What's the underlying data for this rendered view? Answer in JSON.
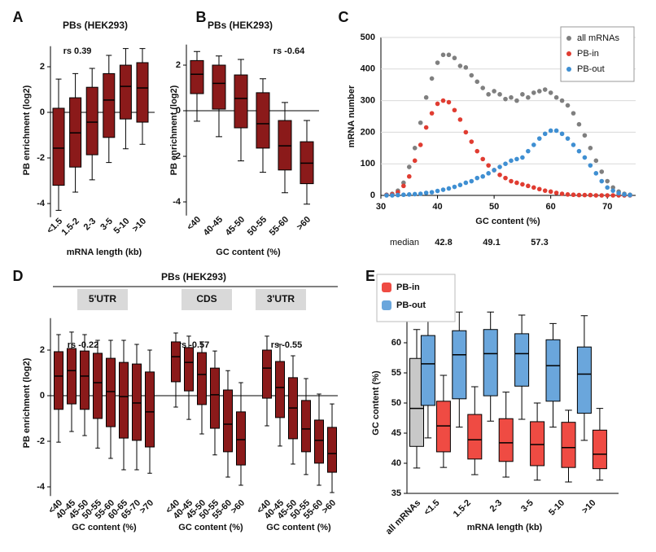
{
  "chart_data": [
    {
      "panel": "A",
      "type": "box",
      "title": "PBs (HEK293)",
      "annotation": "rs 0.39",
      "xlabel": "mRNA length (kb)",
      "ylabel": "PB enrichment (log2)",
      "color": "#8b1a1a",
      "hline": 0,
      "categories": [
        "<1.5",
        "1.5-2",
        "2-3",
        "3-5",
        "5-10",
        ">10"
      ],
      "boxes": [
        [
          -4.3,
          -3.2,
          -1.57,
          0.18,
          1.46
        ],
        [
          -3.5,
          -2.4,
          -0.9,
          0.64,
          1.7
        ],
        [
          -2.96,
          -1.86,
          -0.43,
          1.1,
          1.93
        ],
        [
          -2.2,
          -1.1,
          0.54,
          1.7,
          2.5
        ],
        [
          -1.6,
          -0.29,
          1.14,
          2.07,
          2.8
        ],
        [
          -1.4,
          -0.43,
          1.07,
          2.18,
          2.8
        ]
      ],
      "ylim": [
        -4.6,
        2.9
      ],
      "yticks": [
        -4,
        -2,
        0,
        2
      ]
    },
    {
      "panel": "B",
      "type": "box",
      "title": "PBs (HEK293)",
      "annotation": "rs -0.64",
      "xlabel": "GC content (%)",
      "ylabel": "PB enrichment (log2)",
      "color": "#8b1a1a",
      "hline": 0,
      "categories": [
        "<40",
        "40-45",
        "45-50",
        "50-55",
        "55-60",
        ">60"
      ],
      "boxes": [
        [
          -0.46,
          0.75,
          1.6,
          2.2,
          2.6
        ],
        [
          -1.14,
          0.07,
          1.2,
          2.0,
          2.4
        ],
        [
          -2.2,
          -0.75,
          0.54,
          1.57,
          2.25
        ],
        [
          -2.7,
          -1.64,
          -0.57,
          0.79,
          1.4
        ],
        [
          -3.6,
          -2.6,
          -1.54,
          -0.43,
          0.36
        ],
        [
          -4.1,
          -3.2,
          -2.3,
          -1.36,
          -0.43
        ]
      ],
      "ylim": [
        -4.6,
        2.9
      ],
      "yticks": [
        -4,
        -2,
        0,
        2
      ]
    },
    {
      "panel": "C",
      "type": "scatter",
      "xlabel": "GC content (%)",
      "ylabel": "mRNA number",
      "median_label": "median",
      "grid": true,
      "legend": "upper right",
      "x": [
        31,
        32,
        33,
        34,
        35,
        36,
        37,
        38,
        39,
        40,
        41,
        42,
        43,
        44,
        45,
        46,
        47,
        48,
        49,
        50,
        51,
        52,
        53,
        54,
        55,
        56,
        57,
        58,
        59,
        60,
        61,
        62,
        63,
        64,
        65,
        66,
        67,
        68,
        69,
        70,
        71,
        72,
        73,
        74
      ],
      "series": [
        {
          "name": "all mRNAs",
          "color": "#7f7f7f",
          "median": 49.1,
          "values": [
            2,
            5,
            15,
            40,
            90,
            150,
            230,
            310,
            370,
            420,
            445,
            445,
            435,
            410,
            405,
            380,
            360,
            340,
            320,
            330,
            320,
            305,
            310,
            300,
            320,
            310,
            325,
            330,
            335,
            325,
            310,
            300,
            285,
            260,
            225,
            190,
            150,
            110,
            75,
            45,
            25,
            12,
            5,
            2
          ]
        },
        {
          "name": "PB-in",
          "color": "#e03c31",
          "median": 42.8,
          "values": [
            1,
            3,
            10,
            30,
            60,
            110,
            160,
            215,
            260,
            290,
            300,
            295,
            270,
            240,
            200,
            170,
            140,
            115,
            95,
            80,
            65,
            55,
            45,
            40,
            35,
            30,
            25,
            20,
            15,
            12,
            8,
            5,
            3,
            2,
            1,
            1,
            1,
            0,
            0,
            0,
            0,
            0,
            0,
            0
          ]
        },
        {
          "name": "PB-out",
          "color": "#3f8fd2",
          "median": 57.3,
          "values": [
            0,
            0,
            1,
            2,
            3,
            4,
            5,
            8,
            10,
            14,
            18,
            22,
            27,
            33,
            40,
            45,
            55,
            60,
            70,
            80,
            90,
            100,
            110,
            115,
            120,
            140,
            160,
            180,
            195,
            205,
            205,
            195,
            180,
            160,
            140,
            120,
            95,
            70,
            45,
            25,
            15,
            7,
            3,
            1
          ]
        }
      ],
      "xlim": [
        30,
        75
      ],
      "ylim": [
        0,
        500
      ],
      "xticks": [
        30,
        40,
        50,
        60,
        70
      ],
      "yticks": [
        0,
        100,
        200,
        300,
        400,
        500
      ]
    },
    {
      "panel": "D",
      "type": "grouped-box",
      "title": "PBs (HEK293)",
      "ylabel": "PB enrichment (log2)",
      "color": "#8b1a1a",
      "hline": 0,
      "ylim": [
        -4.4,
        3.4
      ],
      "yticks": [
        -4,
        -2,
        0,
        2
      ],
      "groups": [
        {
          "name": "5'UTR",
          "annotation": "rs -0.22",
          "xlabel": "GC content (%)",
          "categories": [
            "<40",
            "40-45",
            "45-50",
            "50-55",
            "55-60",
            "60-65",
            "65-70",
            ">70"
          ],
          "boxes": [
            [
              -2.04,
              -0.6,
              0.86,
              1.93,
              2.68
            ],
            [
              -1.57,
              -0.36,
              1.1,
              2.07,
              2.79
            ],
            [
              -1.75,
              -0.6,
              0.86,
              1.96,
              2.68
            ],
            [
              -2.3,
              -1.0,
              0.57,
              1.86,
              2.43
            ],
            [
              -2.75,
              -1.36,
              0.18,
              1.64,
              2.43
            ],
            [
              -3.25,
              -1.86,
              -0.04,
              1.46,
              2.43
            ],
            [
              -3.25,
              -1.96,
              -0.32,
              1.39,
              2.25
            ],
            [
              -3.4,
              -2.25,
              -0.71,
              1.04,
              2.0
            ]
          ]
        },
        {
          "name": "CDS",
          "annotation": "rs -0.57",
          "xlabel": "GC content (%)",
          "categories": [
            "<40",
            "40-45",
            "45-50",
            "50-55",
            "55-60",
            ">60"
          ],
          "boxes": [
            [
              -0.5,
              0.61,
              1.71,
              2.36,
              2.75
            ],
            [
              -1.04,
              0.21,
              1.46,
              2.11,
              2.61
            ],
            [
              -1.68,
              -0.39,
              0.93,
              1.89,
              2.36
            ],
            [
              -2.6,
              -1.43,
              0.04,
              1.21,
              1.96
            ],
            [
              -3.57,
              -2.46,
              -1.25,
              0.25,
              1.1
            ],
            [
              -3.93,
              -3.04,
              -1.93,
              -0.71,
              0.57
            ]
          ]
        },
        {
          "name": "3'UTR",
          "annotation": "rs -0.55",
          "xlabel": "GC content (%)",
          "categories": [
            "<40",
            "40-45",
            "45-50",
            "50-55",
            "55-60",
            ">60"
          ],
          "boxes": [
            [
              -1.32,
              -0.11,
              1.21,
              2.0,
              2.61
            ],
            [
              -2.21,
              -0.96,
              0.36,
              1.5,
              2.25
            ],
            [
              -3.0,
              -1.89,
              -0.54,
              0.79,
              1.75
            ],
            [
              -3.46,
              -2.46,
              -1.46,
              -0.21,
              0.75
            ],
            [
              -3.93,
              -2.96,
              -1.96,
              -1.07,
              0.07
            ],
            [
              -4.25,
              -3.36,
              -2.54,
              -1.39,
              -0.36
            ]
          ]
        }
      ]
    },
    {
      "panel": "E",
      "type": "box",
      "xlabel": "mRNA length (kb)",
      "ylabel": "GC content (%)",
      "legend": "upper left",
      "categories": [
        "all mRNAs",
        "<1.5",
        "1.5-2",
        "2-3",
        "3-5",
        "5-10",
        ">10"
      ],
      "series": [
        {
          "color": "#c8c8c8",
          "boxes": [
            [
              39.2,
              42.8,
              49.1,
              57.4,
              62.2
            ],
            null,
            null,
            null,
            null,
            null,
            null
          ]
        },
        {
          "name": "PB-in",
          "color": "#ef4b43",
          "boxes": [
            null,
            [
              39.3,
              41.9,
              46.2,
              50.3,
              54.6
            ],
            [
              38.1,
              40.7,
              43.9,
              48.1,
              52.7
            ],
            [
              37.7,
              40.3,
              43.4,
              47.4,
              51.8
            ],
            [
              37.2,
              39.6,
              43.1,
              46.9,
              50
            ],
            [
              36.9,
              39.3,
              42.6,
              46.8,
              48.8
            ],
            [
              37.2,
              39.1,
              41.5,
              45.5,
              49.1
            ]
          ]
        },
        {
          "name": "PB-out",
          "color": "#6aa6dc",
          "boxes": [
            null,
            [
              44.2,
              49.6,
              56.5,
              61.2,
              64.7
            ],
            [
              46,
              50.7,
              58,
              62,
              65.1
            ],
            [
              47,
              51.2,
              58.2,
              62.2,
              65.1
            ],
            [
              47.3,
              52.8,
              58.2,
              61.5,
              64.6
            ],
            [
              46,
              50.3,
              56.2,
              60.5,
              63.2
            ],
            [
              43.8,
              48.3,
              54.8,
              59.3,
              64.5
            ]
          ]
        }
      ],
      "ylim": [
        35,
        65
      ],
      "yticks": [
        35,
        40,
        45,
        50,
        55,
        60,
        65
      ]
    }
  ]
}
